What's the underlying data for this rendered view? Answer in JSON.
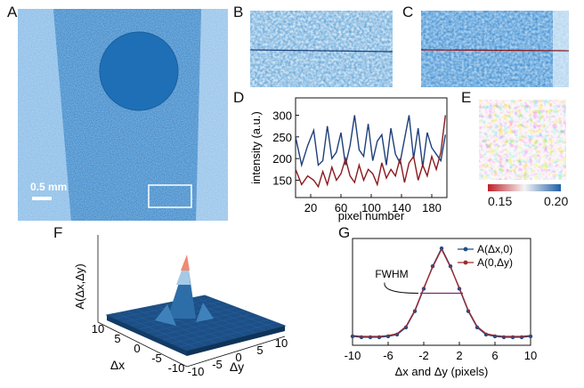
{
  "panels": {
    "A": {
      "label": "A",
      "scale_label": "0.5 mm"
    },
    "B": {
      "label": "B"
    },
    "C": {
      "label": "C"
    },
    "D": {
      "label": "D"
    },
    "E": {
      "label": "E",
      "colorbar_min": "0.15",
      "colorbar_max": "0.20"
    },
    "F": {
      "label": "F",
      "zlabel": "A(Δx,Δy)",
      "xlabel": "Δx",
      "ylabel": "Δy"
    },
    "G": {
      "label": "G",
      "annotation": "FWHM"
    }
  },
  "colors": {
    "image_blue": "#3a88c8",
    "blue_series": "#1f3f7a",
    "red_series": "#8b1a1f",
    "surface_dark": "#1a4f86",
    "surface_peak": "#f08a70"
  },
  "chart_data": [
    {
      "id": "D",
      "type": "line",
      "xlabel": "pixel number",
      "ylabel": "intensity (a.u.)",
      "xlim": [
        0,
        200
      ],
      "ylim": [
        110,
        340
      ],
      "xticks": [
        20,
        60,
        100,
        140,
        180
      ],
      "yticks": [
        150,
        200,
        250,
        300
      ],
      "series": [
        {
          "color": "#1f3f7a",
          "x": [
            0,
            8,
            16,
            24,
            30,
            36,
            42,
            48,
            54,
            60,
            66,
            72,
            78,
            84,
            90,
            96,
            102,
            108,
            114,
            120,
            126,
            132,
            138,
            144,
            150,
            156,
            162,
            168,
            174,
            180,
            186,
            192,
            198
          ],
          "values": [
            250,
            185,
            230,
            265,
            185,
            195,
            275,
            200,
            215,
            260,
            185,
            230,
            300,
            220,
            205,
            280,
            195,
            240,
            255,
            185,
            270,
            210,
            190,
            245,
            300,
            200,
            270,
            180,
            260,
            225,
            210,
            195,
            255
          ]
        },
        {
          "color": "#8b1a1f",
          "x": [
            0,
            8,
            16,
            24,
            30,
            36,
            42,
            48,
            54,
            60,
            66,
            72,
            78,
            84,
            90,
            96,
            102,
            108,
            114,
            120,
            126,
            132,
            138,
            144,
            150,
            156,
            162,
            168,
            174,
            180,
            186,
            192,
            198
          ],
          "values": [
            175,
            140,
            160,
            150,
            135,
            170,
            140,
            180,
            150,
            165,
            200,
            160,
            145,
            185,
            150,
            175,
            165,
            140,
            190,
            155,
            175,
            160,
            200,
            145,
            190,
            205,
            150,
            185,
            160,
            205,
            175,
            215,
            300
          ]
        }
      ]
    },
    {
      "id": "G",
      "type": "line",
      "xlabel": "Δx and Δy (pixels)",
      "xlim": [
        -10,
        10
      ],
      "xticks": [
        -10,
        -6,
        -2,
        2,
        6,
        10
      ],
      "ylim": [
        0,
        1.05
      ],
      "series": [
        {
          "name": "A(Δx,0)",
          "color": "#1f4f8a",
          "x": [
            -10,
            -9,
            -8,
            -7,
            -6,
            -5,
            -4,
            -3,
            -2,
            -1,
            0,
            1,
            2,
            3,
            4,
            5,
            6,
            7,
            8,
            9,
            10
          ],
          "values": [
            0.02,
            0.01,
            0.01,
            0.01,
            0.02,
            0.04,
            0.12,
            0.3,
            0.55,
            0.8,
            1.0,
            0.8,
            0.55,
            0.3,
            0.12,
            0.04,
            0.02,
            0.01,
            0.01,
            0.01,
            0.02
          ]
        },
        {
          "name": "A(0,Δy)",
          "color": "#a0282d",
          "x": [
            -10,
            -9,
            -8,
            -7,
            -6,
            -5,
            -4,
            -3,
            -2,
            -1,
            0,
            1,
            2,
            3,
            4,
            5,
            6,
            7,
            8,
            9,
            10
          ],
          "values": [
            0.03,
            0.02,
            0.02,
            0.02,
            0.03,
            0.05,
            0.13,
            0.31,
            0.56,
            0.79,
            0.99,
            0.79,
            0.56,
            0.31,
            0.13,
            0.05,
            0.03,
            0.02,
            0.02,
            0.02,
            0.03
          ]
        }
      ]
    },
    {
      "id": "F",
      "type": "surface",
      "xticks": [
        10,
        5,
        0,
        -5,
        -10
      ],
      "yticks": [
        -10,
        -5,
        0,
        5,
        10
      ]
    }
  ]
}
